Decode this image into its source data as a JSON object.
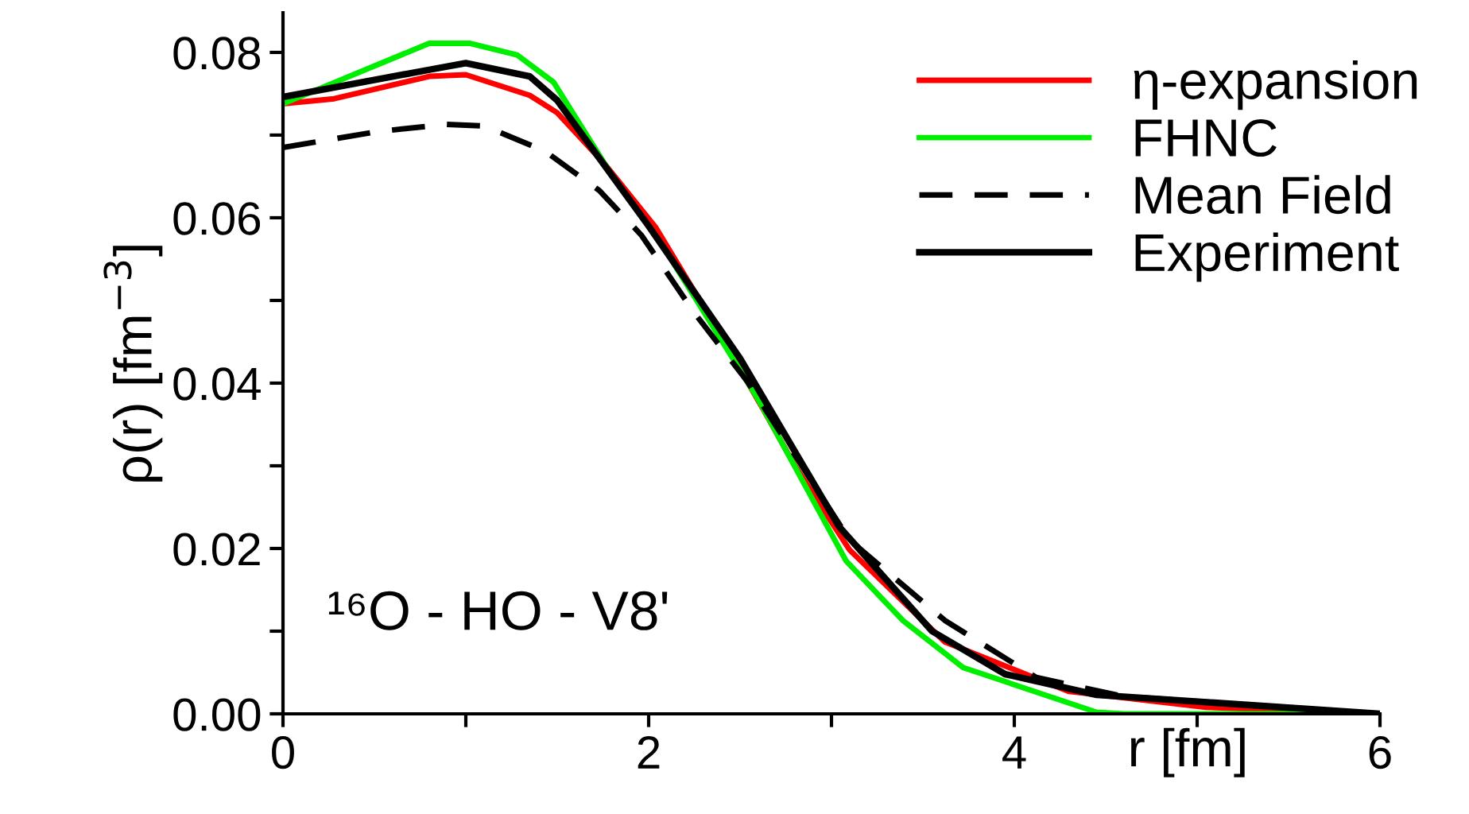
{
  "chart_data": {
    "type": "line",
    "xlabel": "r [fm]",
    "ylabel": "ρ(r) [fm$^{−3}$]",
    "xlim": [
      0,
      6
    ],
    "ylim": [
      0,
      0.0848
    ],
    "xticks": [
      0,
      {
        "value": 1,
        "label": null
      },
      2,
      {
        "value": 3,
        "label": null
      },
      4,
      {
        "value": 5,
        "label": null
      },
      6
    ],
    "yticks": [
      {
        "value": 0,
        "label": "0.00"
      },
      {
        "value": 0.01,
        "label": null
      },
      {
        "value": 0.02,
        "label": "0.02"
      },
      {
        "value": 0.03,
        "label": null
      },
      {
        "value": 0.04,
        "label": "0.04"
      },
      {
        "value": 0.05,
        "label": null
      },
      {
        "value": 0.06,
        "label": "0.06"
      },
      {
        "value": 0.07,
        "label": null
      },
      {
        "value": 0.08,
        "label": "0.08"
      }
    ],
    "grid": false,
    "legend": "top right",
    "marker": "none",
    "annotations": [
      "¹⁶O - HO - V8'"
    ],
    "series": [
      {
        "name": "η-expansion",
        "color": "#ff0000",
        "line_style": "solid",
        "x": [
          0,
          0.28,
          0.8,
          1.0,
          1.35,
          1.5,
          1.76,
          2.04,
          2.37,
          2.63,
          2.8,
          3.1,
          3.62,
          4.3,
          5.05,
          6
        ],
        "values": [
          0.0738,
          0.0744,
          0.0771,
          0.0773,
          0.0748,
          0.0727,
          0.0665,
          0.0588,
          0.0467,
          0.0367,
          0.03,
          0.0198,
          0.0087,
          0.0027,
          0.0008,
          0
        ]
      },
      {
        "name": "FHNC",
        "color": "#00ee00",
        "line_style": "solid",
        "x": [
          0,
          0.22,
          0.8,
          1.02,
          1.28,
          1.48,
          1.78,
          2.08,
          2.6,
          3.08,
          3.39,
          3.72,
          4.45,
          4.6,
          6
        ],
        "values": [
          0.0738,
          0.0758,
          0.0811,
          0.0811,
          0.0797,
          0.0764,
          0.0658,
          0.0565,
          0.038,
          0.0185,
          0.0113,
          0.0056,
          0.0002,
          0,
          0
        ]
      },
      {
        "name": "Mean Field",
        "color": "#000000",
        "line_style": "dashed",
        "x": [
          0,
          0.51,
          0.89,
          1.1,
          1.43,
          1.73,
          1.96,
          2.25,
          2.54,
          3.1,
          3.62,
          4.12,
          4.6,
          6
        ],
        "values": [
          0.0685,
          0.0704,
          0.0713,
          0.0711,
          0.0681,
          0.0633,
          0.0579,
          0.0485,
          0.0402,
          0.021,
          0.0113,
          0.0044,
          0.0021,
          0
        ]
      },
      {
        "name": "Experiment",
        "color": "#000000",
        "line_style": "solid",
        "x": [
          0,
          0.8,
          1.0,
          1.35,
          1.5,
          2.0,
          2.5,
          3.04,
          3.55,
          3.95,
          4.45,
          6
        ],
        "values": [
          0.0746,
          0.0779,
          0.0787,
          0.0771,
          0.0742,
          0.059,
          0.043,
          0.0227,
          0.01,
          0.0048,
          0.0023,
          0
        ]
      }
    ]
  }
}
